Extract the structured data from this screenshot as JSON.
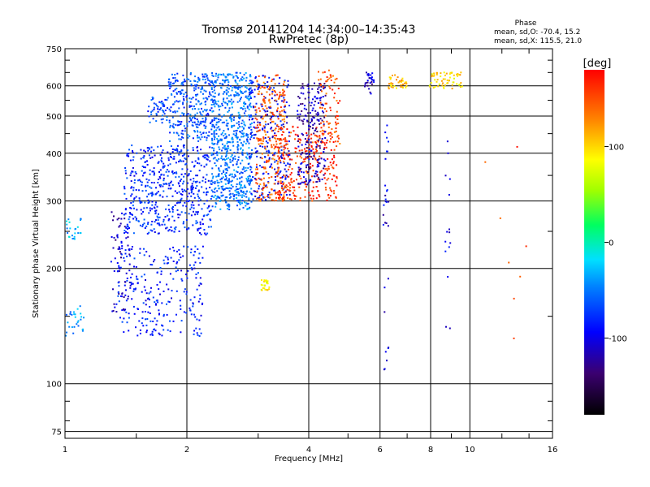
{
  "chart_data": {
    "type": "scatter",
    "title": "Tromsø 20141204 14:34:00–14:35:43",
    "subtitle": "RwPretec (8p)",
    "xlabel": "Frequency [MHz]",
    "ylabel": "Stationary phase Virtual Height [km]",
    "x_scale": "log",
    "y_scale": "log",
    "xlim": [
      1,
      16
    ],
    "ylim": [
      72,
      750
    ],
    "x_ticks": [
      1,
      2,
      4,
      6,
      8,
      10,
      16
    ],
    "y_ticks": [
      75,
      100,
      200,
      300,
      400,
      500,
      600,
      750
    ],
    "grid": true,
    "stats": {
      "heading": "Phase",
      "line_o": "mean, sd,O: -70.4, 15.2",
      "line_x": "mean, sd,X: 115.5, 21.0"
    },
    "colorbar": {
      "label": "[deg]",
      "min": -180,
      "max": 180,
      "ticks": [
        -100,
        0,
        100
      ]
    },
    "clusters": [
      {
        "name": "echo-low-1.0MHz",
        "x": [
          1.0,
          1.1
        ],
        "y": [
          236,
          272
        ],
        "phase": -30,
        "n": 25
      },
      {
        "name": "echo-low-1.0MHz-b",
        "x": [
          1.0,
          1.12
        ],
        "y": [
          133,
          160
        ],
        "phase": -40,
        "n": 30
      },
      {
        "name": "echo-low-1.3MHz",
        "x": [
          1.3,
          1.45
        ],
        "y": [
          150,
          290
        ],
        "phase": -110,
        "n": 70
      },
      {
        "name": "echo-low-1.4MHz",
        "x": [
          1.35,
          2.2
        ],
        "y": [
          133,
          230
        ],
        "phase": -85,
        "n": 260
      },
      {
        "name": "echo-mid-1.5MHz",
        "x": [
          1.4,
          2.3
        ],
        "y": [
          245,
          420
        ],
        "phase": -80,
        "n": 520
      },
      {
        "name": "echo-upper-1.8MHz",
        "x": [
          1.8,
          2.35
        ],
        "y": [
          430,
          650
        ],
        "phase": -65,
        "n": 300
      },
      {
        "name": "echo-upper-1.6MHz",
        "x": [
          1.6,
          1.8
        ],
        "y": [
          480,
          560
        ],
        "phase": -70,
        "n": 50
      },
      {
        "name": "echo-band-2.4MHz",
        "x": [
          2.3,
          2.9
        ],
        "y": [
          285,
          650
        ],
        "phase": -50,
        "n": 700
      },
      {
        "name": "echo-band-2.9MHz",
        "x": [
          2.85,
          3.6
        ],
        "y": [
          300,
          640
        ],
        "phase": -95,
        "n": 260
      },
      {
        "name": "echo-x-3.0MHz",
        "x": [
          2.95,
          3.5
        ],
        "y": [
          300,
          640
        ],
        "phase": 145,
        "n": 260
      },
      {
        "name": "echo-x-3.2MHz",
        "x": [
          3.3,
          4.7
        ],
        "y": [
          300,
          470
        ],
        "phase": 160,
        "n": 280
      },
      {
        "name": "echo-o-3.8MHz",
        "x": [
          3.75,
          4.4
        ],
        "y": [
          330,
          610
        ],
        "phase": -115,
        "n": 220
      },
      {
        "name": "echo-x-4.3MHz",
        "x": [
          4.2,
          4.8
        ],
        "y": [
          420,
          660
        ],
        "phase": 150,
        "n": 80
      },
      {
        "name": "echo-o-5.6MHz",
        "x": [
          5.5,
          5.8
        ],
        "y": [
          570,
          650
        ],
        "phase": -110,
        "n": 30
      },
      {
        "name": "echo-sparse-6.2MHz",
        "x": [
          6.1,
          6.3
        ],
        "y": [
          105,
          480
        ],
        "phase": -100,
        "n": 30
      },
      {
        "name": "echo-top-6.5MHz",
        "x": [
          6.2,
          7.0
        ],
        "y": [
          590,
          640
        ],
        "phase": 110,
        "n": 40
      },
      {
        "name": "echo-top-8.2MHz",
        "x": [
          7.9,
          9.6
        ],
        "y": [
          590,
          650
        ],
        "phase": 100,
        "n": 60
      },
      {
        "name": "echo-cluster-3.1MHz",
        "x": [
          3.05,
          3.2
        ],
        "y": [
          175,
          188
        ],
        "phase": 90,
        "n": 25
      },
      {
        "name": "echo-sparse-8.8MHz",
        "x": [
          8.7,
          9.0
        ],
        "y": [
          135,
          470
        ],
        "phase": -100,
        "n": 15
      },
      {
        "name": "echo-sparse-11MHz",
        "x": [
          10.5,
          14
        ],
        "y": [
          130,
          470
        ],
        "phase": 150,
        "n": 8
      }
    ]
  }
}
